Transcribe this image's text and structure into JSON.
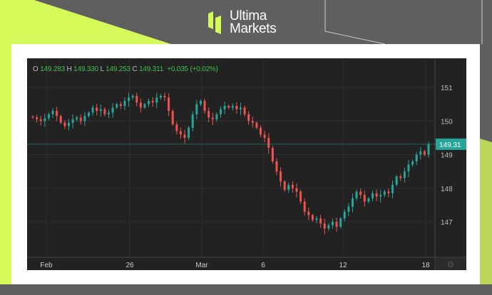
{
  "brand": {
    "line1": "Ultima",
    "line2": "Markets",
    "accent": "#d4fa5a"
  },
  "ohlc": {
    "o_label": "O",
    "o": "149.283",
    "h_label": "H",
    "h": "149.330",
    "l_label": "L",
    "l": "149.253",
    "c_label": "C",
    "c": "149.311",
    "change": "+0.035 (+0.02%)"
  },
  "colors": {
    "up": "#26a69a",
    "down": "#ef5350",
    "background": "#222222"
  },
  "chart_data": {
    "type": "candlestick",
    "y_ticks": [
      "151",
      "150",
      "149",
      "148",
      "147"
    ],
    "ylim": [
      146.1,
      151.9
    ],
    "x_ticks": [
      "Feb",
      "26",
      "Mar",
      "6",
      "12",
      "18"
    ],
    "last_price": "149.31",
    "last_value": 149.31,
    "grid": true,
    "closes": [
      150.11,
      150.05,
      150.0,
      150.08,
      150.2,
      150.3,
      150.15,
      149.95,
      149.85,
      149.95,
      150.05,
      150.1,
      150.0,
      150.15,
      150.25,
      150.4,
      150.3,
      150.35,
      150.2,
      150.25,
      150.4,
      150.5,
      150.45,
      150.6,
      150.7,
      150.75,
      150.55,
      150.4,
      150.5,
      150.6,
      150.55,
      150.7,
      150.75,
      150.7,
      150.3,
      149.9,
      149.7,
      149.6,
      149.5,
      149.8,
      150.2,
      150.5,
      150.6,
      150.3,
      150.1,
      150.05,
      150.2,
      150.35,
      150.45,
      150.4,
      150.45,
      150.35,
      150.4,
      150.2,
      150.0,
      149.95,
      149.8,
      149.6,
      149.5,
      149.2,
      148.8,
      148.5,
      148.2,
      147.95,
      148.1,
      148.0,
      147.9,
      147.6,
      147.3,
      147.2,
      147.05,
      147.1,
      146.95,
      146.8,
      146.9,
      147.0,
      146.85,
      147.1,
      147.3,
      147.45,
      147.7,
      147.9,
      147.8,
      147.6,
      147.7,
      147.85,
      147.75,
      147.8,
      147.9,
      147.85,
      148.1,
      148.35,
      148.3,
      148.5,
      148.7,
      148.8,
      149.0,
      149.1,
      149.0,
      149.31
    ]
  }
}
